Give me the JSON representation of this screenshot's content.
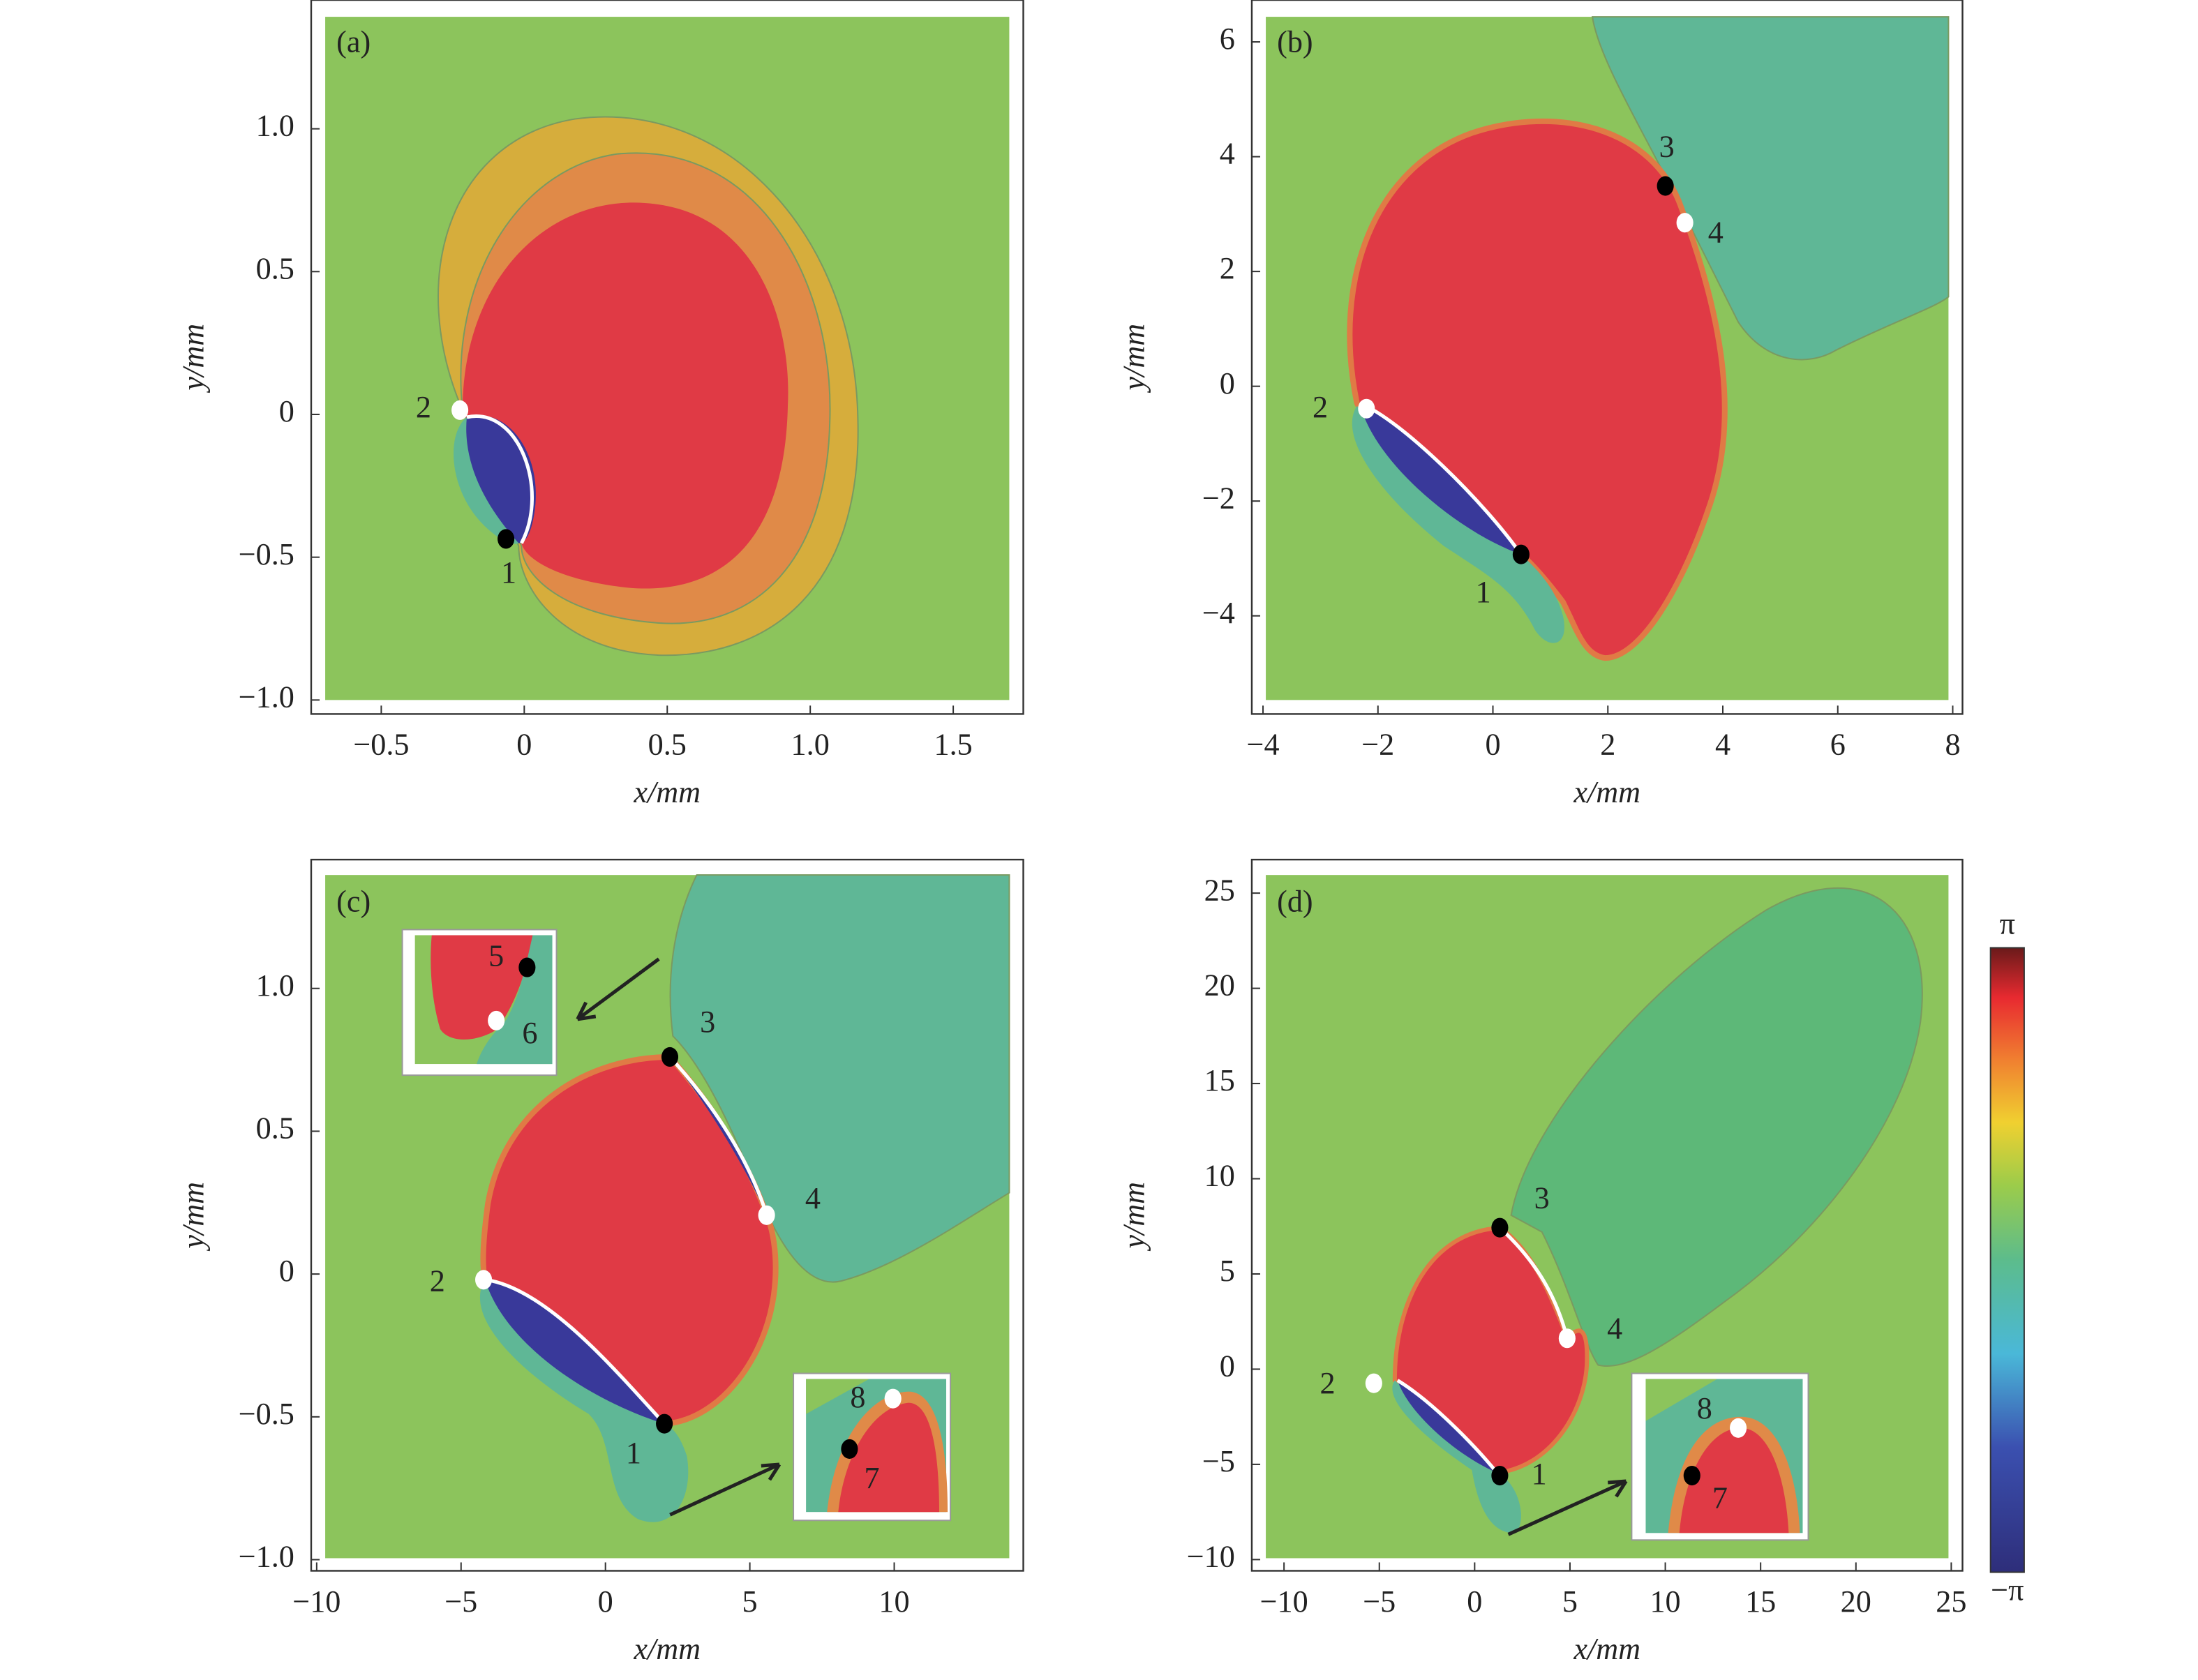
{
  "chart_data": [
    {
      "type": "phase-map",
      "panel_label": "(a)",
      "xlabel": "x/mm",
      "ylabel": "y/mm",
      "xlim": [
        -0.745,
        1.745
      ],
      "ylim": [
        -1.049,
        1.451
      ],
      "xticks": [
        {
          "value": -0.5,
          "label": "−0.5"
        },
        0,
        0.5,
        {
          "value": 1,
          "label": "1.0"
        },
        1.5
      ],
      "yticks": [
        {
          "value": -1,
          "label": "−1.0"
        },
        {
          "value": -0.5,
          "label": "−0.5"
        },
        0,
        0.5,
        {
          "value": 1,
          "label": "1.0"
        }
      ],
      "points": [
        {
          "label": "2",
          "x": -0.225,
          "y": 0.015,
          "color": "white"
        },
        {
          "label": "1",
          "x": -0.064,
          "y": -0.436,
          "color": "black"
        }
      ]
    },
    {
      "type": "phase-map",
      "panel_label": "(b)",
      "xlabel": "x/mm",
      "ylabel": "y/mm",
      "xlim": [
        -4.195,
        8.17
      ],
      "ylim": [
        -5.71,
        6.73
      ],
      "xticks": [
        {
          "value": -4,
          "label": "−4"
        },
        {
          "value": -2,
          "label": "−2"
        },
        0,
        2,
        4,
        6,
        8
      ],
      "yticks": [
        {
          "value": -4,
          "label": "−4"
        },
        {
          "value": -2,
          "label": "−2"
        },
        0,
        2,
        4,
        6
      ],
      "points": [
        {
          "label": "1",
          "x": 0.49,
          "y": -2.93,
          "color": "black"
        },
        {
          "label": "2",
          "x": -2.2,
          "y": -0.39,
          "color": "white"
        },
        {
          "label": "3",
          "x": 3.0,
          "y": 3.49,
          "color": "black"
        },
        {
          "label": "4",
          "x": 3.34,
          "y": 2.85,
          "color": "white"
        }
      ]
    },
    {
      "type": "phase-map",
      "panel_label": "(c)",
      "xlabel": "x/mm",
      "ylabel": "y/mm",
      "xlim": [
        -10.19,
        14.47
      ],
      "ylim": [
        -1.039,
        1.451
      ],
      "xticks": [
        {
          "value": -10,
          "label": "−10"
        },
        {
          "value": -5,
          "label": "−5"
        },
        0,
        5,
        10
      ],
      "yticks": [
        {
          "value": -1,
          "label": "−1.0"
        },
        {
          "value": -0.5,
          "label": "−0.5"
        },
        0,
        0.5,
        {
          "value": 1,
          "label": "1.0"
        }
      ],
      "points": [
        {
          "label": "3",
          "x": 2.23,
          "y": 0.76,
          "color": "black"
        },
        {
          "label": "4",
          "x": 5.58,
          "y": 0.206,
          "color": "white"
        },
        {
          "label": "2",
          "x": -4.22,
          "y": -0.02,
          "color": "white"
        },
        {
          "label": "1",
          "x": 2.04,
          "y": -0.524,
          "color": "black"
        }
      ],
      "inset_labels": [
        "5",
        "6",
        "8",
        "7"
      ]
    },
    {
      "type": "phase-map",
      "panel_label": "(d)",
      "xlabel": "x/mm",
      "ylabel": "y/mm",
      "xlim": [
        -11.69,
        25.59
      ],
      "ylim": [
        -10.59,
        26.76
      ],
      "xticks": [
        {
          "value": -10,
          "label": "−10"
        },
        {
          "value": -5,
          "label": "−5"
        },
        0,
        5,
        10,
        15,
        20,
        25
      ],
      "yticks": [
        {
          "value": -10,
          "label": "−10"
        },
        {
          "value": -5,
          "label": "−5"
        },
        0,
        5,
        10,
        15,
        20,
        25
      ],
      "points": [
        {
          "label": "3",
          "x": 1.32,
          "y": 7.43,
          "color": "black"
        },
        {
          "label": "4",
          "x": 4.85,
          "y": 1.62,
          "color": "white"
        },
        {
          "label": "2",
          "x": -5.29,
          "y": -0.74,
          "color": "white"
        },
        {
          "label": "1",
          "x": 1.32,
          "y": -5.59,
          "color": "black"
        }
      ],
      "inset_labels": [
        "8",
        "7"
      ]
    }
  ],
  "colorbar": {
    "max_label": "π",
    "min_label": "−π"
  }
}
